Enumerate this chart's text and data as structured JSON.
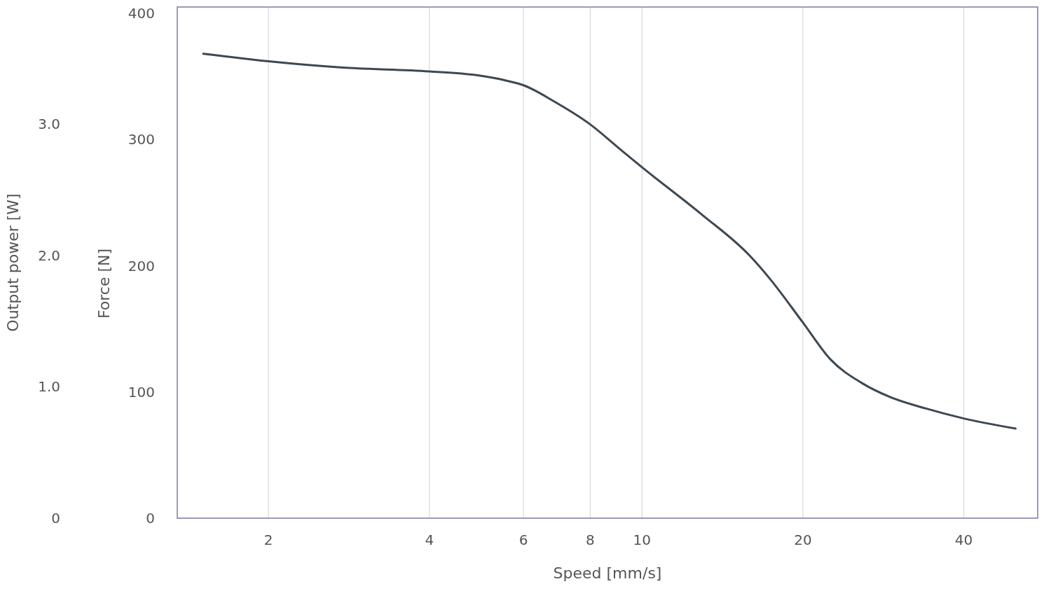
{
  "chart_data": {
    "type": "line",
    "xlabel": "Speed [mm/s]",
    "ylabel": "Force [N]",
    "y2label": "Output power [W]",
    "log": "x",
    "grid": "x",
    "xlim": [
      1.35,
      55
    ],
    "xticks": [
      2,
      4,
      6,
      8,
      10,
      20,
      40
    ],
    "ylim": [
      0,
      405
    ],
    "yticks": [
      0,
      100,
      200,
      300,
      400
    ],
    "y2lim": [
      0,
      3.89
    ],
    "y2ticks": [
      0,
      {
        "value": 1,
        "label": "1.0"
      },
      {
        "value": 2,
        "label": "2.0"
      },
      {
        "value": 3,
        "label": "3.0"
      }
    ],
    "series": [
      {
        "color": "#3d4852",
        "x": [
          1.51,
          2,
          2.76,
          4,
          4.9,
          5.53,
          6,
          6.86,
          8,
          9,
          10,
          12.9,
          15.9,
          17.4,
          20,
          22.5,
          25.8,
          29.1,
          33.9,
          40,
          50
        ],
        "values": [
          368,
          362,
          357,
          354,
          351,
          347,
          343,
          330,
          312,
          294,
          278,
          241,
          208,
          189,
          155,
          126,
          107,
          96,
          87,
          79,
          71
        ]
      }
    ]
  }
}
